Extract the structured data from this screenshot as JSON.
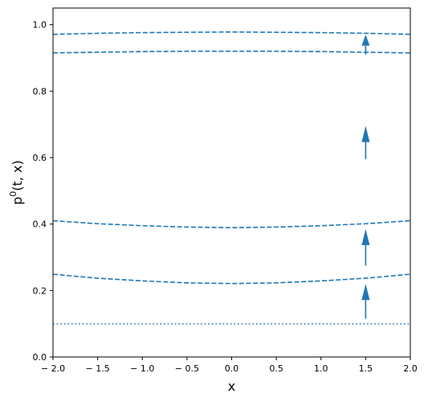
{
  "chart_data": {
    "type": "line",
    "xlabel": "x",
    "ylabel_base": "p",
    "ylabel_sup": "0",
    "ylabel_rest": "(t, x)",
    "xlim": [
      -2.0,
      2.0
    ],
    "ylim": [
      0.0,
      1.05
    ],
    "xticks": [
      -2.0,
      -1.5,
      -1.0,
      -0.5,
      0.0,
      0.5,
      1.0,
      1.5,
      2.0
    ],
    "xtick_labels": [
      "− 2.0",
      "− 1.5",
      "− 1.0",
      "− 0.5",
      "0.0",
      "0.5",
      "1.0",
      "1.5",
      "2.0"
    ],
    "yticks": [
      0.0,
      0.2,
      0.4,
      0.6,
      0.8,
      1.0
    ],
    "ytick_labels": [
      "0.0",
      "0.2",
      "0.4",
      "0.6",
      "0.8",
      "1.0"
    ],
    "grid": false,
    "color": "#1f77b4",
    "series": [
      {
        "style": "dotted",
        "x": [
          -2.0,
          -1.0,
          0.0,
          1.0,
          2.0
        ],
        "y": [
          0.1,
          0.1,
          0.1,
          0.1,
          0.1
        ]
      },
      {
        "style": "dashed",
        "x": [
          -2.0,
          -1.5,
          -1.0,
          -0.5,
          0.0,
          0.5,
          1.0,
          1.5,
          2.0
        ],
        "y": [
          0.249,
          0.237,
          0.229,
          0.223,
          0.221,
          0.223,
          0.229,
          0.237,
          0.249
        ]
      },
      {
        "style": "dashed",
        "x": [
          -2.0,
          -1.5,
          -1.0,
          -0.5,
          0.0,
          0.5,
          1.0,
          1.5,
          2.0
        ],
        "y": [
          0.41,
          0.401,
          0.395,
          0.391,
          0.389,
          0.391,
          0.395,
          0.401,
          0.41
        ]
      },
      {
        "style": "dashed",
        "x": [
          -2.0,
          -1.5,
          -1.0,
          -0.5,
          0.0,
          0.5,
          1.0,
          1.5,
          2.0
        ],
        "y": [
          0.915,
          0.917,
          0.919,
          0.92,
          0.92,
          0.92,
          0.919,
          0.917,
          0.915
        ]
      },
      {
        "style": "dashed",
        "x": [
          -2.0,
          -1.5,
          -1.0,
          -0.5,
          0.0,
          0.5,
          1.0,
          1.5,
          2.0
        ],
        "y": [
          0.971,
          0.974,
          0.976,
          0.977,
          0.978,
          0.977,
          0.976,
          0.974,
          0.971
        ]
      }
    ],
    "arrows": [
      {
        "x": 1.5,
        "y_start": 0.115,
        "y_end": 0.22
      },
      {
        "x": 1.5,
        "y_start": 0.275,
        "y_end": 0.385
      },
      {
        "x": 1.5,
        "y_start": 0.595,
        "y_end": 0.695
      },
      {
        "x": 1.5,
        "y_start": 0.91,
        "y_end": 0.97
      }
    ]
  }
}
